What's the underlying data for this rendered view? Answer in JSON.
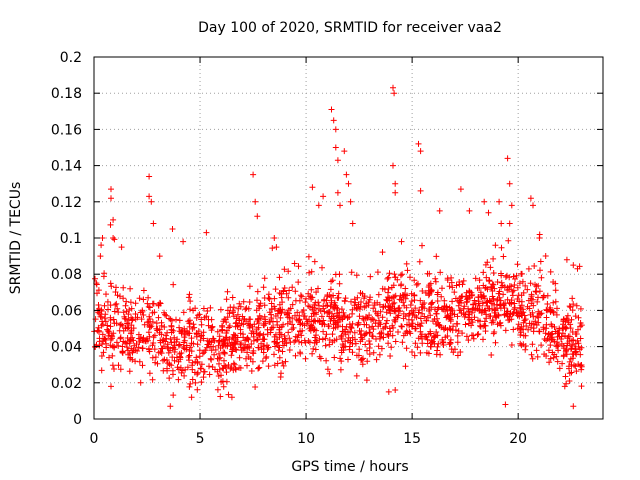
{
  "chart_data": {
    "type": "scatter",
    "title": "Day 100 of 2020, SRMTID for receiver vaa2",
    "xlabel": "GPS time / hours",
    "ylabel": "SRMTID / TECUs",
    "xlim": [
      0,
      24
    ],
    "ylim": [
      0,
      0.2
    ],
    "x_ticks": [
      0,
      5,
      10,
      15,
      20
    ],
    "x_tick_labels": [
      "0",
      "5",
      "10",
      "15",
      "20"
    ],
    "y_ticks": [
      0,
      0.02,
      0.04,
      0.06,
      0.08,
      0.1,
      0.12,
      0.14,
      0.16,
      0.18,
      0.2
    ],
    "y_tick_labels": [
      "0",
      "0.02",
      "0.04",
      "0.06",
      "0.08",
      "0.1",
      "0.12",
      "0.14",
      "0.16",
      "0.18",
      "0.2"
    ],
    "grid": true,
    "marker": "plus",
    "series": [
      {
        "name": "SRMTID",
        "color": "#ff0000",
        "x_range": [
          0,
          23
        ],
        "baseline_profile": [
          [
            0,
            0.052
          ],
          [
            1,
            0.048
          ],
          [
            2,
            0.046
          ],
          [
            3,
            0.047
          ],
          [
            4,
            0.042
          ],
          [
            5,
            0.04
          ],
          [
            6,
            0.041
          ],
          [
            7,
            0.046
          ],
          [
            8,
            0.05
          ],
          [
            9,
            0.05
          ],
          [
            10,
            0.052
          ],
          [
            11,
            0.056
          ],
          [
            12,
            0.054
          ],
          [
            13,
            0.052
          ],
          [
            14,
            0.058
          ],
          [
            15,
            0.06
          ],
          [
            16,
            0.055
          ],
          [
            17,
            0.056
          ],
          [
            18,
            0.062
          ],
          [
            19,
            0.064
          ],
          [
            20,
            0.058
          ],
          [
            21,
            0.056
          ],
          [
            22,
            0.046
          ],
          [
            23,
            0.036
          ]
        ],
        "outliers": [
          [
            0.3,
            0.09
          ],
          [
            0.4,
            0.1
          ],
          [
            0.8,
            0.127
          ],
          [
            0.8,
            0.122
          ],
          [
            0.9,
            0.11
          ],
          [
            0.9,
            0.1
          ],
          [
            1.3,
            0.095
          ],
          [
            2.6,
            0.134
          ],
          [
            2.6,
            0.123
          ],
          [
            2.7,
            0.12
          ],
          [
            2.8,
            0.108
          ],
          [
            3.1,
            0.09
          ],
          [
            3.7,
            0.105
          ],
          [
            4.2,
            0.098
          ],
          [
            5.3,
            0.103
          ],
          [
            7.5,
            0.135
          ],
          [
            7.6,
            0.12
          ],
          [
            7.7,
            0.112
          ],
          [
            8.5,
            0.1
          ],
          [
            8.6,
            0.095
          ],
          [
            10.3,
            0.128
          ],
          [
            10.6,
            0.118
          ],
          [
            10.8,
            0.123
          ],
          [
            11.2,
            0.171
          ],
          [
            11.3,
            0.165
          ],
          [
            11.4,
            0.16
          ],
          [
            11.4,
            0.15
          ],
          [
            11.5,
            0.143
          ],
          [
            11.5,
            0.125
          ],
          [
            11.6,
            0.118
          ],
          [
            11.8,
            0.148
          ],
          [
            11.9,
            0.135
          ],
          [
            12.0,
            0.13
          ],
          [
            12.1,
            0.12
          ],
          [
            12.2,
            0.108
          ],
          [
            14.1,
            0.183
          ],
          [
            14.15,
            0.18
          ],
          [
            14.1,
            0.14
          ],
          [
            14.2,
            0.13
          ],
          [
            14.2,
            0.125
          ],
          [
            14.5,
            0.098
          ],
          [
            15.3,
            0.152
          ],
          [
            15.4,
            0.148
          ],
          [
            15.4,
            0.126
          ],
          [
            16.3,
            0.115
          ],
          [
            17.3,
            0.127
          ],
          [
            17.7,
            0.115
          ],
          [
            18.4,
            0.12
          ],
          [
            18.6,
            0.114
          ],
          [
            19.1,
            0.12
          ],
          [
            19.2,
            0.108
          ],
          [
            19.5,
            0.144
          ],
          [
            19.6,
            0.13
          ],
          [
            19.7,
            0.118
          ],
          [
            19.6,
            0.108
          ],
          [
            20.6,
            0.122
          ],
          [
            20.7,
            0.118
          ],
          [
            21.0,
            0.1
          ],
          [
            22.3,
            0.088
          ],
          [
            22.6,
            0.085
          ],
          [
            22.8,
            0.083
          ],
          [
            0.8,
            0.018
          ],
          [
            2.2,
            0.02
          ],
          [
            4.6,
            0.012
          ],
          [
            3.6,
            0.007
          ],
          [
            6.5,
            0.012
          ],
          [
            11.1,
            0.025
          ],
          [
            13.9,
            0.015
          ],
          [
            14.2,
            0.016
          ],
          [
            19.4,
            0.008
          ],
          [
            22.6,
            0.007
          ],
          [
            22.2,
            0.018
          ]
        ]
      }
    ]
  }
}
